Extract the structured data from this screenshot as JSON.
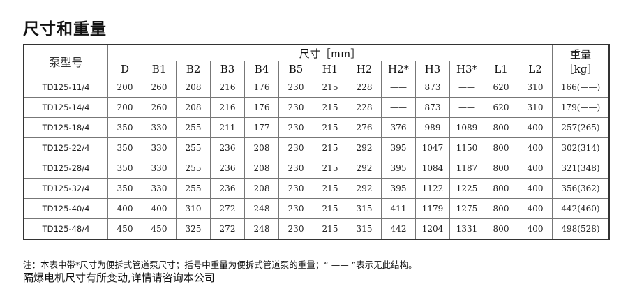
{
  "title": "尺寸和重量",
  "table": {
    "model_header": "泵型号",
    "dim_header": "尺寸［mm］",
    "weight_header_1": "重量",
    "weight_header_2": "［kg］",
    "columns": [
      "D",
      "B1",
      "B2",
      "B3",
      "B4",
      "B5",
      "H1",
      "H2",
      "H2*",
      "H3",
      "H3*",
      "L1",
      "L2"
    ],
    "rows": [
      {
        "model": "TD125-11/4",
        "values": [
          "200",
          "260",
          "208",
          "216",
          "176",
          "230",
          "215",
          "228",
          "——",
          "873",
          "——",
          "620",
          "310"
        ],
        "weight": "166(——)"
      },
      {
        "model": "TD125-14/4",
        "values": [
          "200",
          "260",
          "208",
          "216",
          "176",
          "230",
          "215",
          "228",
          "——",
          "873",
          "——",
          "620",
          "310"
        ],
        "weight": "179(——)"
      },
      {
        "model": "TD125-18/4",
        "values": [
          "350",
          "330",
          "255",
          "211",
          "177",
          "230",
          "215",
          "276",
          "376",
          "989",
          "1089",
          "800",
          "400"
        ],
        "weight": "257(265)"
      },
      {
        "model": "TD125-22/4",
        "values": [
          "350",
          "330",
          "255",
          "236",
          "208",
          "230",
          "215",
          "292",
          "395",
          "1047",
          "1150",
          "800",
          "400"
        ],
        "weight": "302(314)"
      },
      {
        "model": "TD125-28/4",
        "values": [
          "350",
          "330",
          "255",
          "236",
          "208",
          "230",
          "215",
          "292",
          "395",
          "1084",
          "1187",
          "800",
          "400"
        ],
        "weight": "321(348)"
      },
      {
        "model": "TD125-32/4",
        "values": [
          "350",
          "330",
          "255",
          "236",
          "208",
          "230",
          "215",
          "292",
          "395",
          "1122",
          "1225",
          "800",
          "400"
        ],
        "weight": "356(362)"
      },
      {
        "model": "TD125-40/4",
        "values": [
          "400",
          "400",
          "310",
          "272",
          "248",
          "230",
          "215",
          "315",
          "411",
          "1179",
          "1275",
          "800",
          "400"
        ],
        "weight": "442(460)"
      },
      {
        "model": "TD125-48/4",
        "values": [
          "450",
          "450",
          "325",
          "272",
          "248",
          "230",
          "215",
          "315",
          "442",
          "1204",
          "1331",
          "800",
          "400"
        ],
        "weight": "498(528)"
      }
    ]
  },
  "note": "注：本表中带*尺寸为便拆式管道泵尺寸；括号中重量为便拆式管道泵的重量；“ —— ”表示无此结构。",
  "footer": "隔爆电机尺寸有所变动,详情请咨询本公司"
}
